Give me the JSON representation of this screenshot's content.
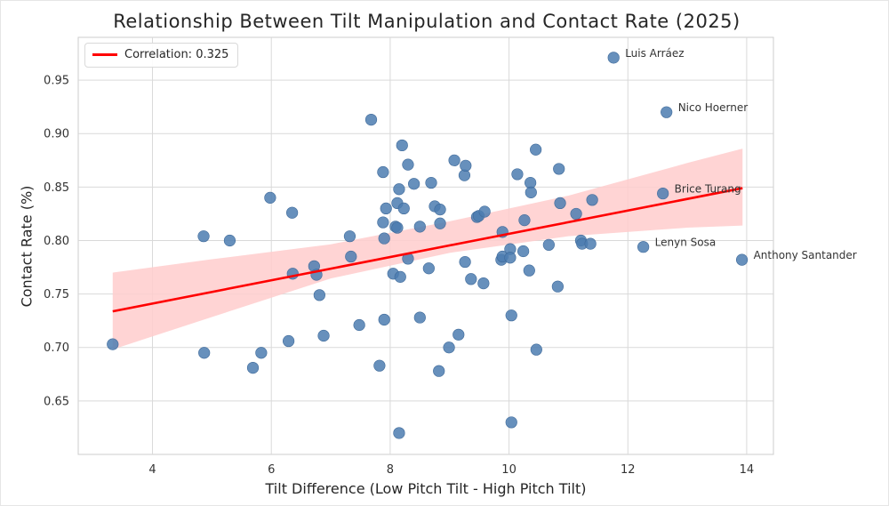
{
  "chart_data": {
    "type": "scatter",
    "title": "Relationship Between Tilt Manipulation and Contact Rate (2025)",
    "xlabel": "Tilt Difference (Low Pitch Tilt - High Pitch Tilt)",
    "ylabel": "Contact Rate (%)",
    "xlim": [
      2.75,
      14.45
    ],
    "ylim": [
      0.6,
      0.99
    ],
    "xticks": [
      4,
      6,
      8,
      10,
      12,
      14
    ],
    "yticks": [
      0.65,
      0.7,
      0.75,
      0.8,
      0.85,
      0.9,
      0.95
    ],
    "ytick_labels": [
      "0.65",
      "0.70",
      "0.75",
      "0.80",
      "0.85",
      "0.90",
      "0.95"
    ],
    "grid": true,
    "legend": {
      "placement": "top-left",
      "label": "Correlation: 0.325"
    },
    "colors": {
      "points": "#4c7cb0",
      "regression": "#ff0000",
      "band": "#ffcccc"
    },
    "regression": {
      "x": [
        3.33,
        13.93
      ],
      "y": [
        0.7338,
        0.849
      ],
      "ci_x": [
        3.33,
        5.0,
        7.0,
        9.0,
        11.0,
        13.0,
        13.93
      ],
      "ci_low": [
        0.6982,
        0.7285,
        0.7645,
        0.7885,
        0.804,
        0.812,
        0.814
      ],
      "ci_high": [
        0.77,
        0.7825,
        0.7965,
        0.818,
        0.842,
        0.8725,
        0.886
      ]
    },
    "points": [
      {
        "x": 3.33,
        "y": 0.703
      },
      {
        "x": 4.86,
        "y": 0.804
      },
      {
        "x": 4.87,
        "y": 0.695
      },
      {
        "x": 5.3,
        "y": 0.8
      },
      {
        "x": 5.69,
        "y": 0.681
      },
      {
        "x": 5.83,
        "y": 0.695
      },
      {
        "x": 5.98,
        "y": 0.84
      },
      {
        "x": 6.29,
        "y": 0.706
      },
      {
        "x": 6.35,
        "y": 0.826
      },
      {
        "x": 6.36,
        "y": 0.769
      },
      {
        "x": 6.72,
        "y": 0.776
      },
      {
        "x": 6.76,
        "y": 0.768
      },
      {
        "x": 6.81,
        "y": 0.749
      },
      {
        "x": 6.88,
        "y": 0.711
      },
      {
        "x": 7.32,
        "y": 0.804
      },
      {
        "x": 7.34,
        "y": 0.785
      },
      {
        "x": 7.48,
        "y": 0.721
      },
      {
        "x": 7.68,
        "y": 0.913
      },
      {
        "x": 7.82,
        "y": 0.683
      },
      {
        "x": 7.88,
        "y": 0.864
      },
      {
        "x": 7.88,
        "y": 0.817
      },
      {
        "x": 7.9,
        "y": 0.726
      },
      {
        "x": 7.9,
        "y": 0.802
      },
      {
        "x": 7.93,
        "y": 0.83
      },
      {
        "x": 8.05,
        "y": 0.769
      },
      {
        "x": 8.09,
        "y": 0.813
      },
      {
        "x": 8.12,
        "y": 0.812
      },
      {
        "x": 8.12,
        "y": 0.835
      },
      {
        "x": 8.15,
        "y": 0.848
      },
      {
        "x": 8.15,
        "y": 0.62
      },
      {
        "x": 8.17,
        "y": 0.766
      },
      {
        "x": 8.2,
        "y": 0.889
      },
      {
        "x": 8.23,
        "y": 0.83
      },
      {
        "x": 8.3,
        "y": 0.783
      },
      {
        "x": 8.3,
        "y": 0.871
      },
      {
        "x": 8.4,
        "y": 0.853
      },
      {
        "x": 8.5,
        "y": 0.813
      },
      {
        "x": 8.5,
        "y": 0.728
      },
      {
        "x": 8.65,
        "y": 0.774
      },
      {
        "x": 8.69,
        "y": 0.854
      },
      {
        "x": 8.75,
        "y": 0.832
      },
      {
        "x": 8.82,
        "y": 0.678
      },
      {
        "x": 8.84,
        "y": 0.816
      },
      {
        "x": 8.84,
        "y": 0.829
      },
      {
        "x": 8.99,
        "y": 0.7
      },
      {
        "x": 9.08,
        "y": 0.875
      },
      {
        "x": 9.15,
        "y": 0.712
      },
      {
        "x": 9.25,
        "y": 0.861
      },
      {
        "x": 9.26,
        "y": 0.78
      },
      {
        "x": 9.27,
        "y": 0.87
      },
      {
        "x": 9.36,
        "y": 0.764
      },
      {
        "x": 9.46,
        "y": 0.822
      },
      {
        "x": 9.49,
        "y": 0.823
      },
      {
        "x": 9.57,
        "y": 0.76
      },
      {
        "x": 9.59,
        "y": 0.827
      },
      {
        "x": 9.87,
        "y": 0.782
      },
      {
        "x": 9.89,
        "y": 0.808
      },
      {
        "x": 9.89,
        "y": 0.785
      },
      {
        "x": 10.02,
        "y": 0.792
      },
      {
        "x": 10.02,
        "y": 0.784
      },
      {
        "x": 10.04,
        "y": 0.63
      },
      {
        "x": 10.04,
        "y": 0.73
      },
      {
        "x": 10.14,
        "y": 0.862
      },
      {
        "x": 10.24,
        "y": 0.79
      },
      {
        "x": 10.26,
        "y": 0.819
      },
      {
        "x": 10.34,
        "y": 0.772
      },
      {
        "x": 10.36,
        "y": 0.854
      },
      {
        "x": 10.37,
        "y": 0.845
      },
      {
        "x": 10.45,
        "y": 0.885
      },
      {
        "x": 10.46,
        "y": 0.698
      },
      {
        "x": 10.67,
        "y": 0.796
      },
      {
        "x": 10.82,
        "y": 0.757
      },
      {
        "x": 10.84,
        "y": 0.867
      },
      {
        "x": 10.86,
        "y": 0.835
      },
      {
        "x": 11.13,
        "y": 0.825
      },
      {
        "x": 11.21,
        "y": 0.8
      },
      {
        "x": 11.23,
        "y": 0.797
      },
      {
        "x": 11.37,
        "y": 0.797
      },
      {
        "x": 11.4,
        "y": 0.838
      },
      {
        "x": 11.76,
        "y": 0.971
      },
      {
        "x": 12.26,
        "y": 0.794
      },
      {
        "x": 12.59,
        "y": 0.844
      },
      {
        "x": 12.65,
        "y": 0.92
      },
      {
        "x": 13.92,
        "y": 0.782
      }
    ],
    "annotations": [
      {
        "label": "Luis Arráez",
        "x": 11.76,
        "y": 0.971
      },
      {
        "label": "Nico Hoerner",
        "x": 12.65,
        "y": 0.92
      },
      {
        "label": "Brice Turang",
        "x": 12.59,
        "y": 0.844
      },
      {
        "label": "Lenyn Sosa",
        "x": 12.26,
        "y": 0.794
      },
      {
        "label": "Anthony Santander",
        "x": 13.92,
        "y": 0.782
      }
    ]
  }
}
